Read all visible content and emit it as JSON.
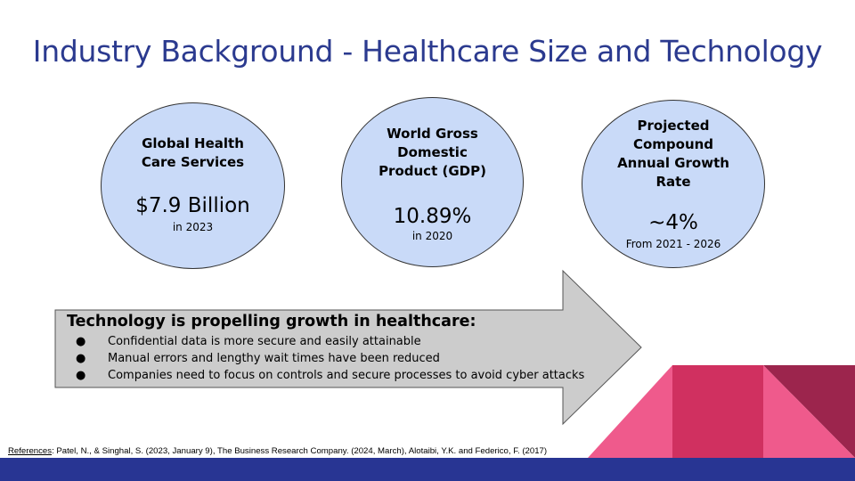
{
  "slide": {
    "title": "Industry Background - Healthcare Size and Technology"
  },
  "stats": [
    {
      "label_lines": [
        "Global Health",
        "Care Services"
      ],
      "value": "$7.9 Billion",
      "note": "in 2023"
    },
    {
      "label_lines": [
        "World Gross",
        "Domestic",
        "Product (GDP)"
      ],
      "value": "10.89%",
      "note": "in 2020"
    },
    {
      "label_lines": [
        "Projected",
        "Compound",
        "Annual Growth",
        "Rate"
      ],
      "value": "~4%",
      "note": "From 2021 - 2026"
    }
  ],
  "arrow": {
    "heading": "Technology is propelling growth in healthcare:",
    "bullet_glyph": "●",
    "bullets": [
      "Confidential data is more secure and easily attainable",
      "Manual errors and lengthy wait times have been reduced",
      "Companies need to focus on controls and secure processes to avoid cyber attacks"
    ]
  },
  "references": {
    "label": "References",
    "text": ": Patel, N., & Singhal, S. (2023, January 9), The Business Research Company. (2024, March),  Alotaibi, Y.K. and Federico, F. (2017)"
  },
  "colors": {
    "title": "#2b3a8f",
    "circle_fill": "#c9daf8",
    "arrow_fill": "#cccccc",
    "footer_bar": "#283593",
    "pink": "#ef5a8c",
    "crimson": "#d03060",
    "maroon": "#9c254d"
  }
}
